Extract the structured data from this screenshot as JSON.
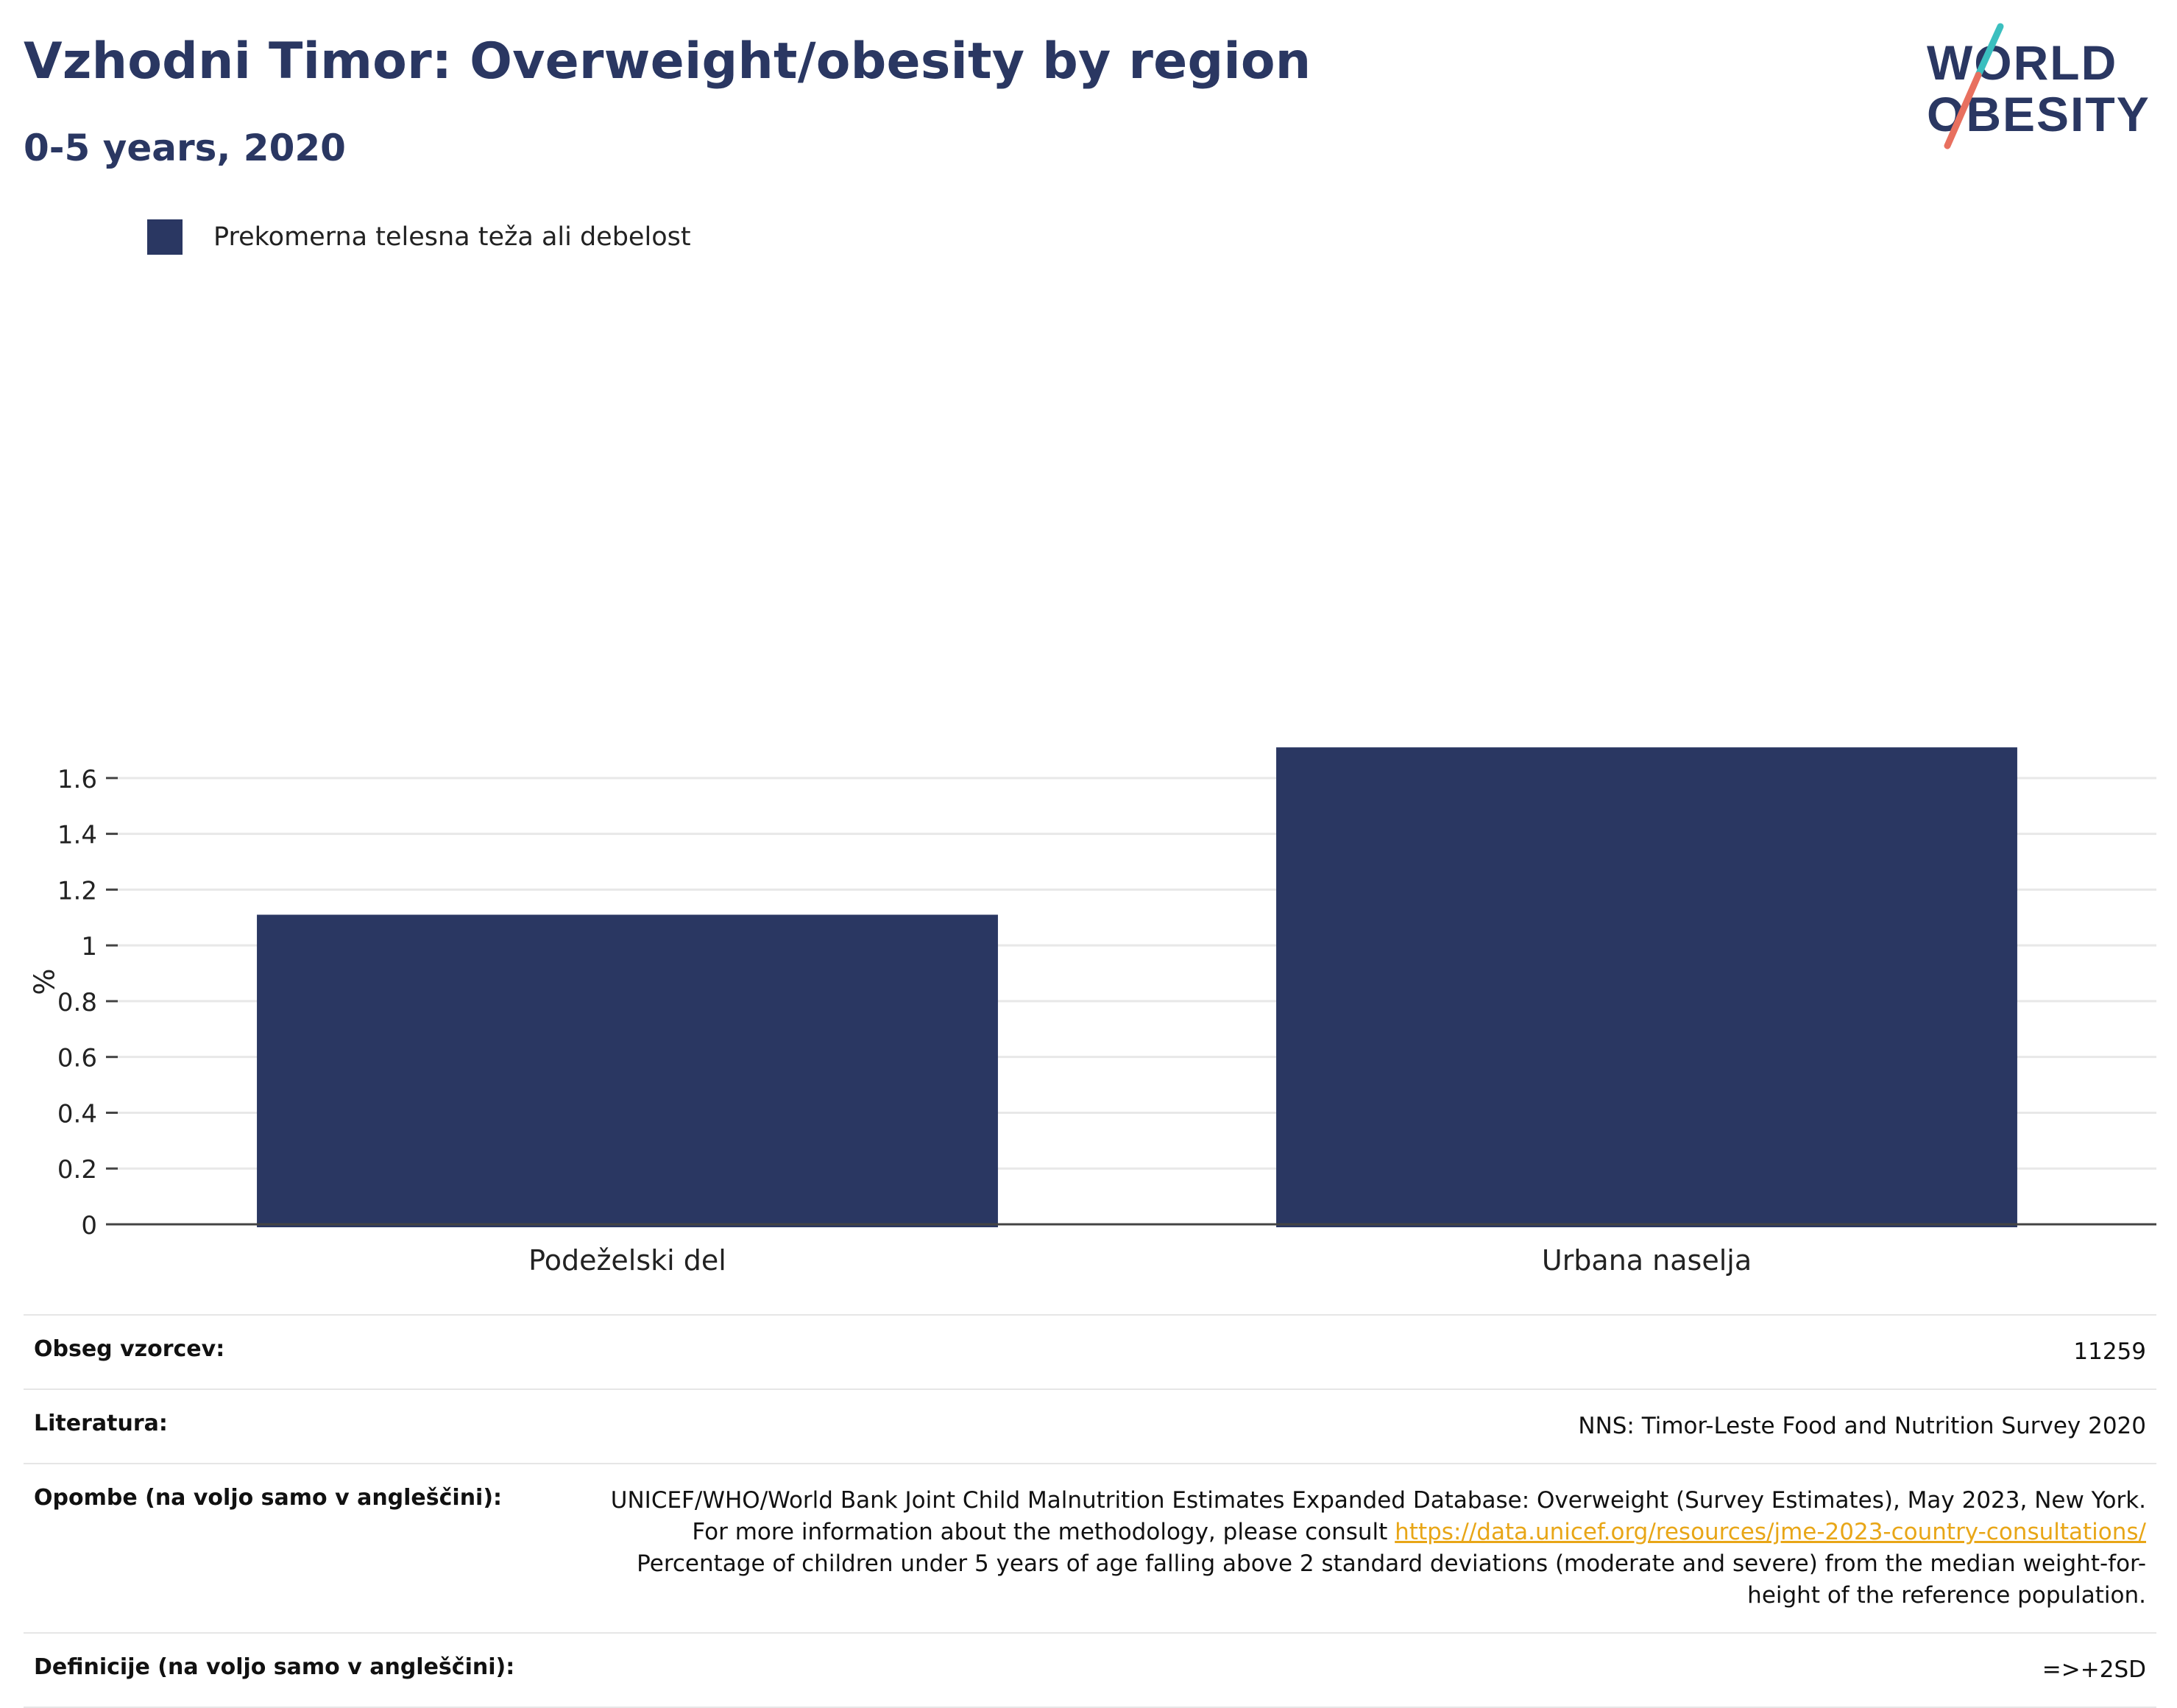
{
  "header": {
    "title": "Vzhodni Timor: Overweight/obesity by region",
    "subtitle": "0-5 years, 2020"
  },
  "logo": {
    "line1": "WORLD",
    "line2": "OBESITY"
  },
  "colors": {
    "bar": "#2a3762",
    "title": "#2a3762",
    "link": "#e8a617",
    "logo_teal": "#3bbfbf",
    "logo_coral": "#e8705f"
  },
  "chart_data": {
    "type": "bar",
    "categories": [
      "Podeželski del",
      "Urbana naselja"
    ],
    "series": [
      {
        "name": "Prekomerna telesna teža ali debelost",
        "values": [
          1.11,
          1.71
        ]
      }
    ],
    "ylabel": "%",
    "ylim": [
      0,
      1.75
    ],
    "yticks": [
      0,
      0.2,
      0.4,
      0.6,
      0.8,
      1,
      1.2,
      1.4,
      1.6
    ],
    "ytick_labels": [
      "0",
      "0.2",
      "0.4",
      "0.6",
      "0.8",
      "1",
      "1.2",
      "1.4",
      "1.6"
    ],
    "grid": true,
    "legend": "top-left"
  },
  "info": {
    "sample": {
      "label": "Obseg vzorcev:",
      "value": "11259"
    },
    "literature": {
      "label": "Literatura:",
      "value": "NNS: Timor-Leste Food and Nutrition Survey 2020"
    },
    "notes": {
      "label": "Opombe (na voljo samo v angleščini):",
      "text_before": "UNICEF/WHO/World Bank Joint Child Malnutrition Estimates Expanded Database: Overweight (Survey Estimates), May 2023, New York. For more information about the methodology, please consult ",
      "link": "https://data.unicef.org/resources/jme-2023-country-consultations/",
      "text_after": "Percentage of children under 5 years of age falling above 2 standard deviations (moderate and severe) from the median weight-for-height of the reference population."
    },
    "definitions": {
      "label": "Definicije (na voljo samo v angleščini):",
      "value": "=>+2SD"
    }
  }
}
